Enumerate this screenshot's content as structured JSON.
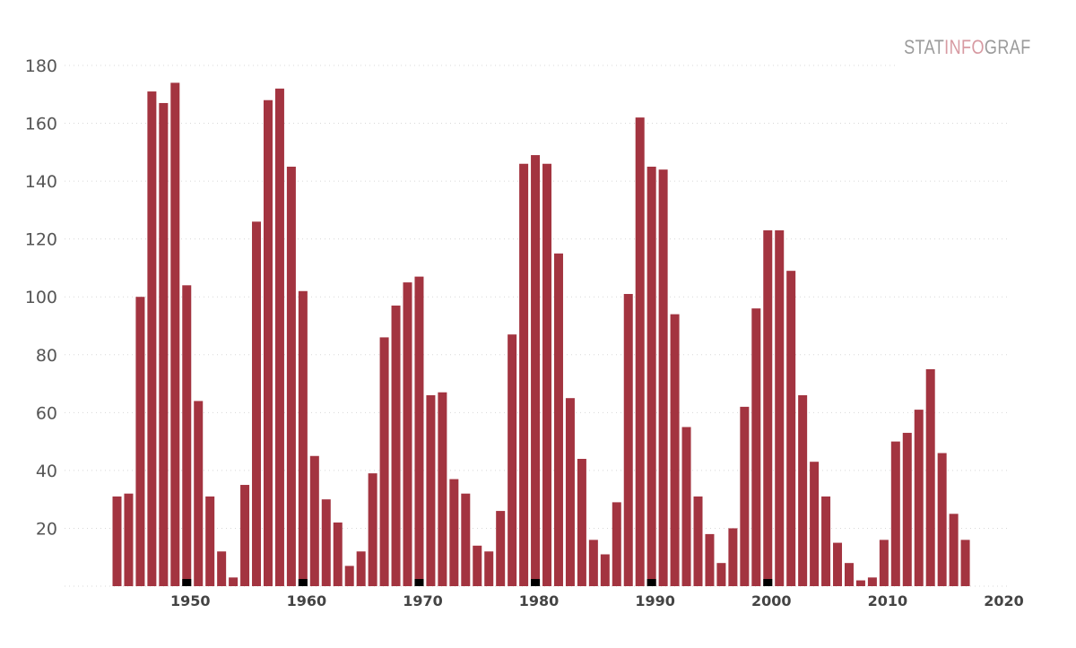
{
  "brand": {
    "part1": "STAT",
    "part2": "INFO",
    "part3": "GRAF"
  },
  "colors": {
    "bar": "#a33440",
    "marker": "#000000",
    "grid": "#d8d8d8"
  },
  "chart_data": {
    "type": "bar",
    "title": "",
    "xlabel": "",
    "ylabel": "",
    "x": [
      1944,
      1945,
      1946,
      1947,
      1948,
      1949,
      1950,
      1951,
      1952,
      1953,
      1954,
      1955,
      1956,
      1957,
      1958,
      1959,
      1960,
      1961,
      1962,
      1963,
      1964,
      1965,
      1966,
      1967,
      1968,
      1969,
      1970,
      1971,
      1972,
      1973,
      1974,
      1975,
      1976,
      1977,
      1978,
      1979,
      1980,
      1981,
      1982,
      1983,
      1984,
      1985,
      1986,
      1987,
      1988,
      1989,
      1990,
      1991,
      1992,
      1993,
      1994,
      1995,
      1996,
      1997,
      1998,
      1999,
      2000,
      2001,
      2002,
      2003,
      2004,
      2005,
      2006,
      2007,
      2008,
      2009,
      2010,
      2011,
      2012,
      2013,
      2014,
      2015,
      2016,
      2017
    ],
    "values": [
      31,
      32,
      100,
      171,
      167,
      174,
      104,
      64,
      31,
      12,
      3,
      35,
      126,
      168,
      172,
      145,
      102,
      45,
      30,
      22,
      7,
      12,
      39,
      86,
      97,
      105,
      107,
      66,
      67,
      37,
      32,
      14,
      12,
      26,
      87,
      146,
      149,
      146,
      115,
      65,
      44,
      16,
      11,
      29,
      101,
      162,
      145,
      144,
      94,
      55,
      31,
      18,
      8,
      20,
      62,
      96,
      123,
      123,
      109,
      66,
      43,
      31,
      15,
      8,
      2,
      3,
      16,
      50,
      53,
      61,
      75,
      46,
      25,
      16
    ],
    "decade_markers": [
      1950,
      1960,
      1970,
      1980,
      1990,
      2000
    ],
    "ylim": [
      0,
      180
    ],
    "yticks": [
      20,
      40,
      60,
      80,
      100,
      120,
      140,
      160,
      180
    ],
    "xticks": [
      1950,
      1960,
      1970,
      1980,
      1990,
      2000,
      2010,
      2020
    ],
    "grid": true,
    "legend": "none"
  }
}
